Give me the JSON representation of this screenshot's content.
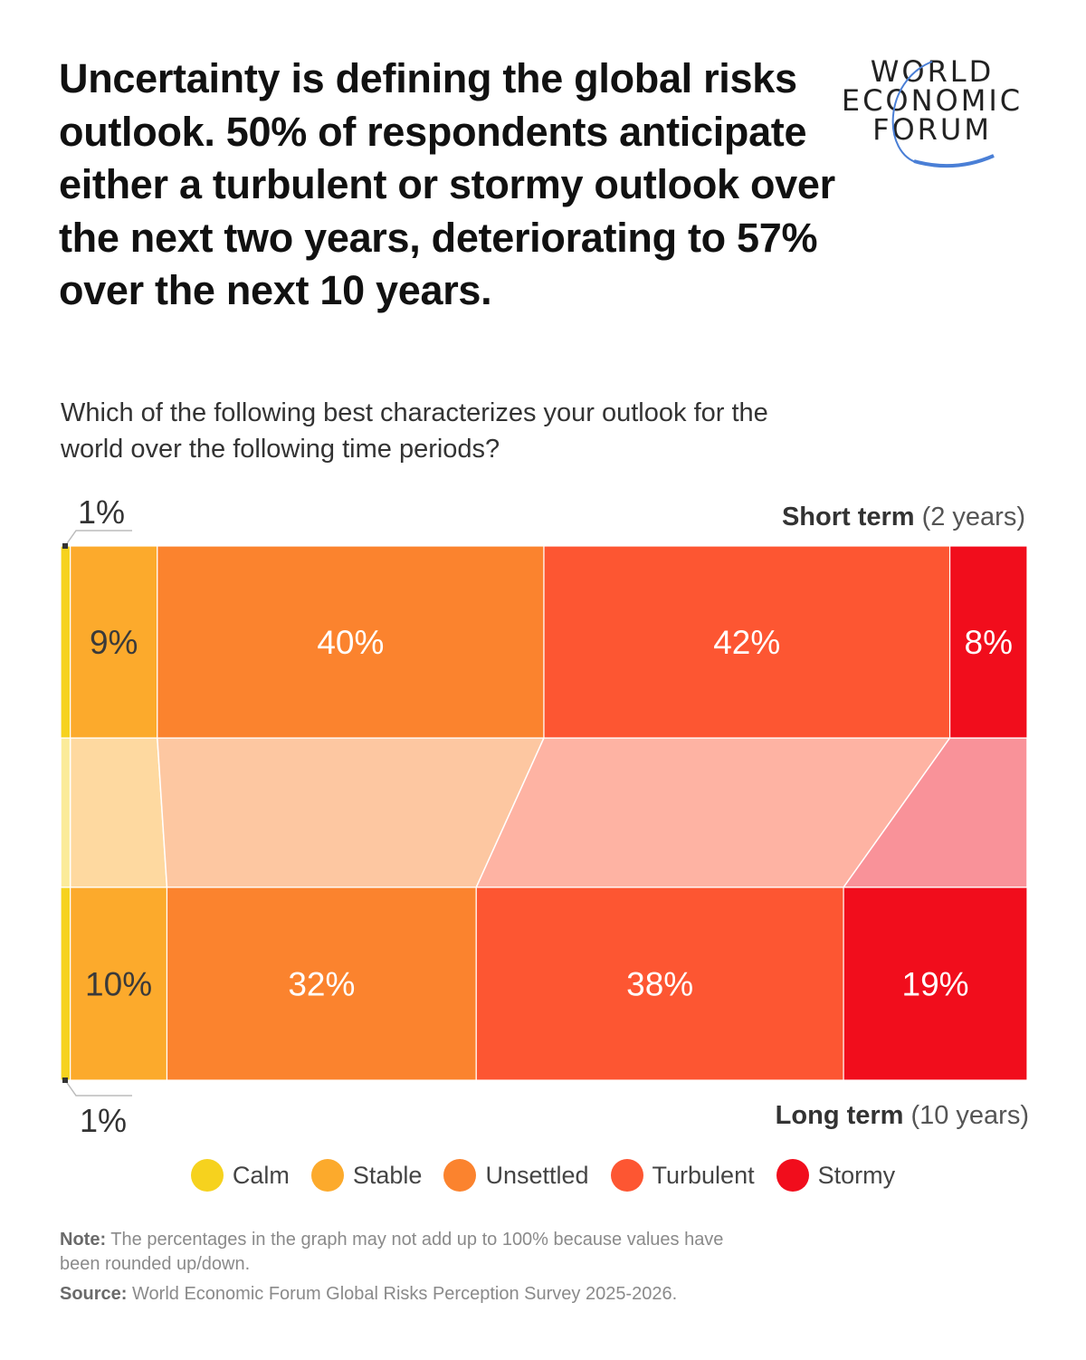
{
  "title": "Uncertainty is defining the global risks outlook. 50% of respondents anticipate either a turbulent or stormy outlook over the next two years, deteriorating to 57% over the next 10 years.",
  "logo": {
    "text": [
      "WORLD",
      "ECONOMIC",
      "FORUM"
    ],
    "arc_color": "#4a7fd6"
  },
  "question": "Which of the following best characterizes your outlook for the world over the following time periods?",
  "chart_data": {
    "type": "bar",
    "stacked": "100%",
    "orientation": "horizontal",
    "categories": [
      "Short term",
      "Long term"
    ],
    "category_notes": [
      "(2 years)",
      "(10 years)"
    ],
    "series": [
      {
        "name": "Calm",
        "color": "#f6d21e",
        "values": [
          1,
          1
        ]
      },
      {
        "name": "Stable",
        "color": "#fcaa2c",
        "values": [
          9,
          10
        ]
      },
      {
        "name": "Unsettled",
        "color": "#fb832e",
        "values": [
          40,
          32
        ]
      },
      {
        "name": "Turbulent",
        "color": "#fd5632",
        "values": [
          42,
          38
        ]
      },
      {
        "name": "Stormy",
        "color": "#f10d1c",
        "values": [
          8,
          19
        ]
      }
    ],
    "labels": [
      [
        "1%",
        "9%",
        "40%",
        "42%",
        "8%"
      ],
      [
        "1%",
        "10%",
        "32%",
        "38%",
        "19%"
      ]
    ],
    "legend": "bottom"
  },
  "notes": {
    "note_label": "Note:",
    "note_text": " The percentages in the graph may not add up to 100% because values have been rounded up/down.",
    "source_label": "Source:",
    "source_text": " World Economic Forum Global Risks Perception Survey 2025-2026."
  }
}
